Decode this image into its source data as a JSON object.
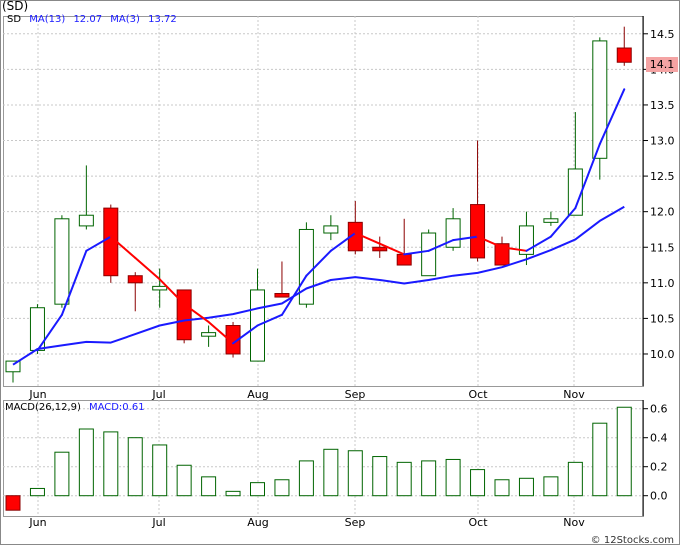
{
  "header": {
    "title": "(SD)",
    "symbol": "SD",
    "ma13_label": "MA(13)",
    "ma13_value": "12.07",
    "ma3_label": "MA(3)",
    "ma3_value": "13.72",
    "last_price_label": "14.1"
  },
  "macd_header": {
    "label": "MACD(26,12,9)",
    "value_label": "MACD:0.61"
  },
  "credit": "© 12Stocks.com",
  "colors": {
    "up_candle": "#ffffff",
    "down_candle": "#ff0000",
    "ma3_line": "#ff0000",
    "ma3_line_rising": "#1a1aff",
    "ma13_line": "#1a1aff",
    "macd_bar": "#006400",
    "macd_negative": "#ff0000",
    "grid": "#c8c8c8"
  },
  "chart_data": [
    {
      "type": "candlestick",
      "title": "(SD)",
      "x_tick_labels": [
        "Jun",
        "Jul",
        "Aug",
        "Sep",
        "Oct",
        "Nov"
      ],
      "y_ticks": [
        10.0,
        10.5,
        11.0,
        11.5,
        12.0,
        12.5,
        13.0,
        13.5,
        14.0,
        14.5
      ],
      "ylim": [
        9.55,
        14.75
      ],
      "grid": true,
      "candles": [
        {
          "o": 9.75,
          "h": 9.85,
          "l": 9.6,
          "c": 9.9
        },
        {
          "o": 10.05,
          "h": 10.7,
          "l": 10.0,
          "c": 10.65
        },
        {
          "o": 10.7,
          "h": 11.95,
          "l": 10.65,
          "c": 11.9
        },
        {
          "o": 11.8,
          "h": 12.65,
          "l": 11.75,
          "c": 11.95
        },
        {
          "o": 12.05,
          "h": 12.1,
          "l": 11.0,
          "c": 11.1
        },
        {
          "o": 11.1,
          "h": 11.15,
          "l": 10.6,
          "c": 11.0
        },
        {
          "o": 10.9,
          "h": 11.2,
          "l": 10.65,
          "c": 10.95
        },
        {
          "o": 10.9,
          "h": 10.9,
          "l": 10.15,
          "c": 10.2
        },
        {
          "o": 10.25,
          "h": 10.4,
          "l": 10.1,
          "c": 10.3
        },
        {
          "o": 10.4,
          "h": 10.45,
          "l": 9.95,
          "c": 10.0
        },
        {
          "o": 9.9,
          "h": 11.2,
          "l": 9.9,
          "c": 10.9
        },
        {
          "o": 10.85,
          "h": 11.3,
          "l": 10.8,
          "c": 10.8
        },
        {
          "o": 10.7,
          "h": 11.85,
          "l": 10.65,
          "c": 11.75
        },
        {
          "o": 11.7,
          "h": 11.95,
          "l": 11.6,
          "c": 11.8
        },
        {
          "o": 11.85,
          "h": 12.15,
          "l": 11.4,
          "c": 11.45
        },
        {
          "o": 11.5,
          "h": 11.65,
          "l": 11.35,
          "c": 11.45
        },
        {
          "o": 11.4,
          "h": 11.9,
          "l": 11.25,
          "c": 11.25
        },
        {
          "o": 11.1,
          "h": 11.75,
          "l": 11.1,
          "c": 11.7
        },
        {
          "o": 11.5,
          "h": 12.05,
          "l": 11.45,
          "c": 11.9
        },
        {
          "o": 12.1,
          "h": 13.0,
          "l": 11.3,
          "c": 11.35
        },
        {
          "o": 11.55,
          "h": 11.65,
          "l": 11.3,
          "c": 11.25
        },
        {
          "o": 11.4,
          "h": 12.0,
          "l": 11.25,
          "c": 11.8
        },
        {
          "o": 11.85,
          "h": 12.0,
          "l": 11.8,
          "c": 11.9
        },
        {
          "o": 11.95,
          "h": 13.4,
          "l": 11.95,
          "c": 12.6
        },
        {
          "o": 12.75,
          "h": 14.45,
          "l": 12.45,
          "c": 14.4
        },
        {
          "o": 14.3,
          "h": 14.6,
          "l": 14.05,
          "c": 14.1
        }
      ],
      "series": [
        {
          "name": "MA(3)",
          "values": [
            null,
            10.05,
            10.55,
            11.45,
            11.65,
            11.35,
            11.05,
            10.7,
            10.45,
            10.15,
            10.4,
            10.55,
            11.1,
            11.45,
            11.7,
            11.55,
            11.4,
            11.45,
            11.6,
            11.65,
            11.5,
            11.45,
            11.65,
            12.05,
            12.95,
            13.72
          ]
        },
        {
          "name": "MA(13)",
          "values": [
            9.85,
            10.07,
            10.12,
            10.17,
            10.16,
            10.28,
            10.4,
            10.47,
            10.51,
            10.56,
            10.64,
            10.71,
            10.92,
            11.04,
            11.08,
            11.04,
            10.99,
            11.04,
            11.1,
            11.14,
            11.22,
            11.33,
            11.46,
            11.61,
            11.87,
            12.07
          ]
        }
      ]
    },
    {
      "type": "bar",
      "title": "MACD(26,12,9)",
      "y_ticks": [
        0.0,
        0.2,
        0.4,
        0.6
      ],
      "ylim": [
        -0.14,
        0.66
      ],
      "grid": true,
      "values": [
        -0.1,
        0.05,
        0.3,
        0.46,
        0.44,
        0.4,
        0.35,
        0.21,
        0.13,
        0.03,
        0.09,
        0.11,
        0.24,
        0.32,
        0.31,
        0.27,
        0.23,
        0.24,
        0.25,
        0.18,
        0.11,
        0.12,
        0.13,
        0.23,
        0.5,
        0.61
      ]
    }
  ]
}
